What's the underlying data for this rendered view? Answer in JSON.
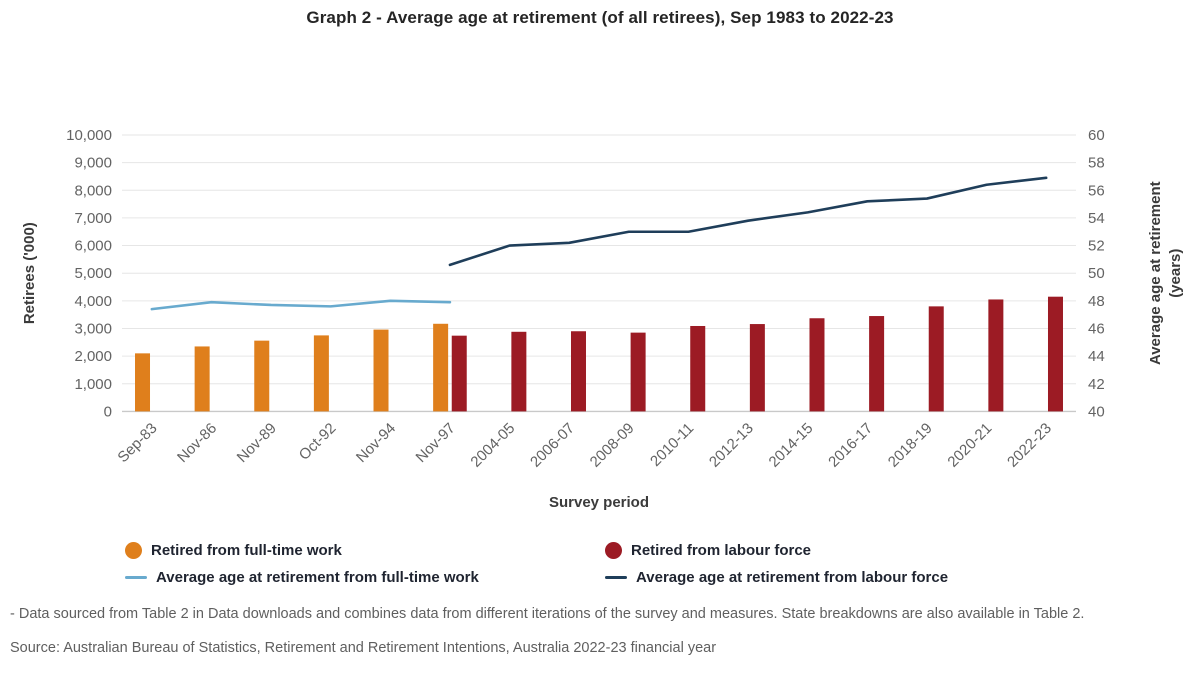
{
  "title": "Graph 2 - Average age at retirement (of all retirees), Sep 1983 to 2022-23",
  "colors": {
    "orange_bar": "#DF7F1C",
    "dark_red_bar": "#9C1B24",
    "light_blue_line": "#68AACE",
    "navy_line": "#1F3E5A",
    "gridline": "#E6E6E6",
    "baseline": "#C9C9C9",
    "tick_text": "#636363",
    "axis_title_text": "#3B3B3B"
  },
  "chart_data": {
    "type": "combo (clustered bar + line, dual axis)",
    "title": "Graph 2 - Average age at retirement (of all retirees), Sep 1983 to 2022-23",
    "categories": [
      "Sep-83",
      "Nov-86",
      "Nov-89",
      "Oct-92",
      "Nov-94",
      "Nov-97",
      "2004-05",
      "2006-07",
      "2008-09",
      "2010-11",
      "2012-13",
      "2014-15",
      "2016-17",
      "2018-19",
      "2020-21",
      "2022-23"
    ],
    "xlabel": "Survey period",
    "left_axis": {
      "label": "Retirees ('000)",
      "min": 0,
      "max": 10000,
      "step": 1000
    },
    "right_axis": {
      "label_line1": "Average age at retirement",
      "label_line2": "(years)",
      "min": 40,
      "max": 60,
      "step": 2
    },
    "grid": "horizontal only",
    "legend_position": "bottom, two columns",
    "series": [
      {
        "name": "Retired from full-time work",
        "type": "bar",
        "axis": "left",
        "color": "#DF7F1C",
        "values": [
          2100,
          2350,
          2560,
          2750,
          2960,
          3170,
          null,
          null,
          null,
          null,
          null,
          null,
          null,
          null,
          null,
          null
        ]
      },
      {
        "name": "Retired from labour force",
        "type": "bar",
        "axis": "left",
        "color": "#9C1B24",
        "values": [
          null,
          null,
          null,
          null,
          null,
          2740,
          2880,
          2900,
          2850,
          3090,
          3160,
          3370,
          3450,
          3800,
          4050,
          4150
        ]
      },
      {
        "name": "Average age at retirement from full-time work",
        "type": "line",
        "axis": "right",
        "color": "#68AACE",
        "values": [
          47.4,
          47.9,
          47.7,
          47.6,
          48.0,
          47.9,
          null,
          null,
          null,
          null,
          null,
          null,
          null,
          null,
          null,
          null
        ]
      },
      {
        "name": "Average age at retirement from labour force",
        "type": "line",
        "axis": "right",
        "color": "#1F3E5A",
        "values": [
          null,
          null,
          null,
          null,
          null,
          50.6,
          52.0,
          52.2,
          53.0,
          53.0,
          53.8,
          54.4,
          55.2,
          55.4,
          56.4,
          56.9
        ]
      }
    ]
  },
  "footnotes": {
    "line1": "- Data sourced from Table 2 in Data downloads and combines data from different iterations of the survey and measures. State breakdowns are also available in Table 2.",
    "line2": "Source: Australian Bureau of Statistics, Retirement and Retirement Intentions, Australia 2022-23 financial year"
  }
}
